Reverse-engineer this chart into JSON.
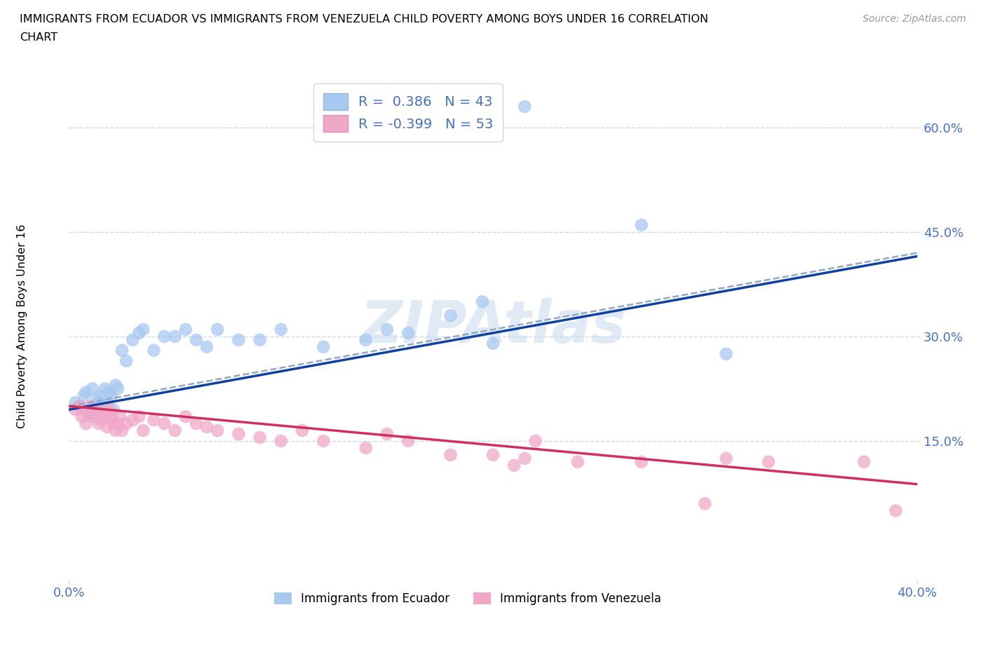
{
  "title_line1": "IMMIGRANTS FROM ECUADOR VS IMMIGRANTS FROM VENEZUELA CHILD POVERTY AMONG BOYS UNDER 16 CORRELATION",
  "title_line2": "CHART",
  "source": "Source: ZipAtlas.com",
  "ylabel": "Child Poverty Among Boys Under 16",
  "xlim": [
    0.0,
    0.4
  ],
  "ylim": [
    -0.05,
    0.68
  ],
  "ytick_values": [
    0.15,
    0.3,
    0.45,
    0.6
  ],
  "ytick_labels": [
    "15.0%",
    "30.0%",
    "45.0%",
    "60.0%"
  ],
  "xtick_values": [
    0.0,
    0.4
  ],
  "xtick_labels": [
    "0.0%",
    "40.0%"
  ],
  "ecuador_R": 0.386,
  "ecuador_N": 43,
  "venezuela_R": -0.399,
  "venezuela_N": 53,
  "ecuador_color": "#a8c8f0",
  "venezuela_color": "#f0a8c8",
  "ecuador_line_color": "#1040a0",
  "venezuela_line_color": "#d03060",
  "dashed_line_color": "#90a8c8",
  "grid_color": "#d0d8e0",
  "watermark_color": "#ccdcee",
  "watermark_text": "ZIPAtlas",
  "ecuador_label": "Immigrants from Ecuador",
  "venezuela_label": "Immigrants from Venezuela",
  "tick_label_color": "#4472C4",
  "ecuador_x": [
    0.003,
    0.005,
    0.007,
    0.008,
    0.01,
    0.011,
    0.012,
    0.013,
    0.014,
    0.015,
    0.016,
    0.017,
    0.018,
    0.019,
    0.02,
    0.021,
    0.022,
    0.023,
    0.025,
    0.027,
    0.03,
    0.033,
    0.035,
    0.04,
    0.045,
    0.05,
    0.055,
    0.06,
    0.065,
    0.07,
    0.08,
    0.09,
    0.1,
    0.12,
    0.14,
    0.15,
    0.16,
    0.18,
    0.195,
    0.2,
    0.215,
    0.27,
    0.31
  ],
  "ecuador_y": [
    0.205,
    0.2,
    0.215,
    0.22,
    0.19,
    0.225,
    0.195,
    0.21,
    0.205,
    0.215,
    0.2,
    0.225,
    0.205,
    0.22,
    0.215,
    0.195,
    0.23,
    0.225,
    0.28,
    0.265,
    0.295,
    0.305,
    0.31,
    0.28,
    0.3,
    0.3,
    0.31,
    0.295,
    0.285,
    0.31,
    0.295,
    0.295,
    0.31,
    0.285,
    0.295,
    0.31,
    0.305,
    0.33,
    0.35,
    0.29,
    0.63,
    0.46,
    0.275
  ],
  "venezuela_x": [
    0.003,
    0.005,
    0.006,
    0.007,
    0.008,
    0.009,
    0.01,
    0.011,
    0.012,
    0.013,
    0.014,
    0.015,
    0.016,
    0.017,
    0.018,
    0.019,
    0.02,
    0.021,
    0.022,
    0.023,
    0.024,
    0.025,
    0.027,
    0.03,
    0.033,
    0.035,
    0.04,
    0.045,
    0.05,
    0.055,
    0.06,
    0.065,
    0.07,
    0.08,
    0.09,
    0.1,
    0.11,
    0.12,
    0.14,
    0.15,
    0.16,
    0.18,
    0.2,
    0.21,
    0.215,
    0.22,
    0.24,
    0.27,
    0.3,
    0.31,
    0.33,
    0.375,
    0.39
  ],
  "venezuela_y": [
    0.195,
    0.2,
    0.185,
    0.195,
    0.175,
    0.19,
    0.2,
    0.185,
    0.19,
    0.195,
    0.175,
    0.18,
    0.19,
    0.185,
    0.17,
    0.195,
    0.185,
    0.175,
    0.165,
    0.175,
    0.185,
    0.165,
    0.175,
    0.18,
    0.185,
    0.165,
    0.18,
    0.175,
    0.165,
    0.185,
    0.175,
    0.17,
    0.165,
    0.16,
    0.155,
    0.15,
    0.165,
    0.15,
    0.14,
    0.16,
    0.15,
    0.13,
    0.13,
    0.115,
    0.125,
    0.15,
    0.12,
    0.12,
    0.06,
    0.125,
    0.12,
    0.12,
    0.05
  ]
}
